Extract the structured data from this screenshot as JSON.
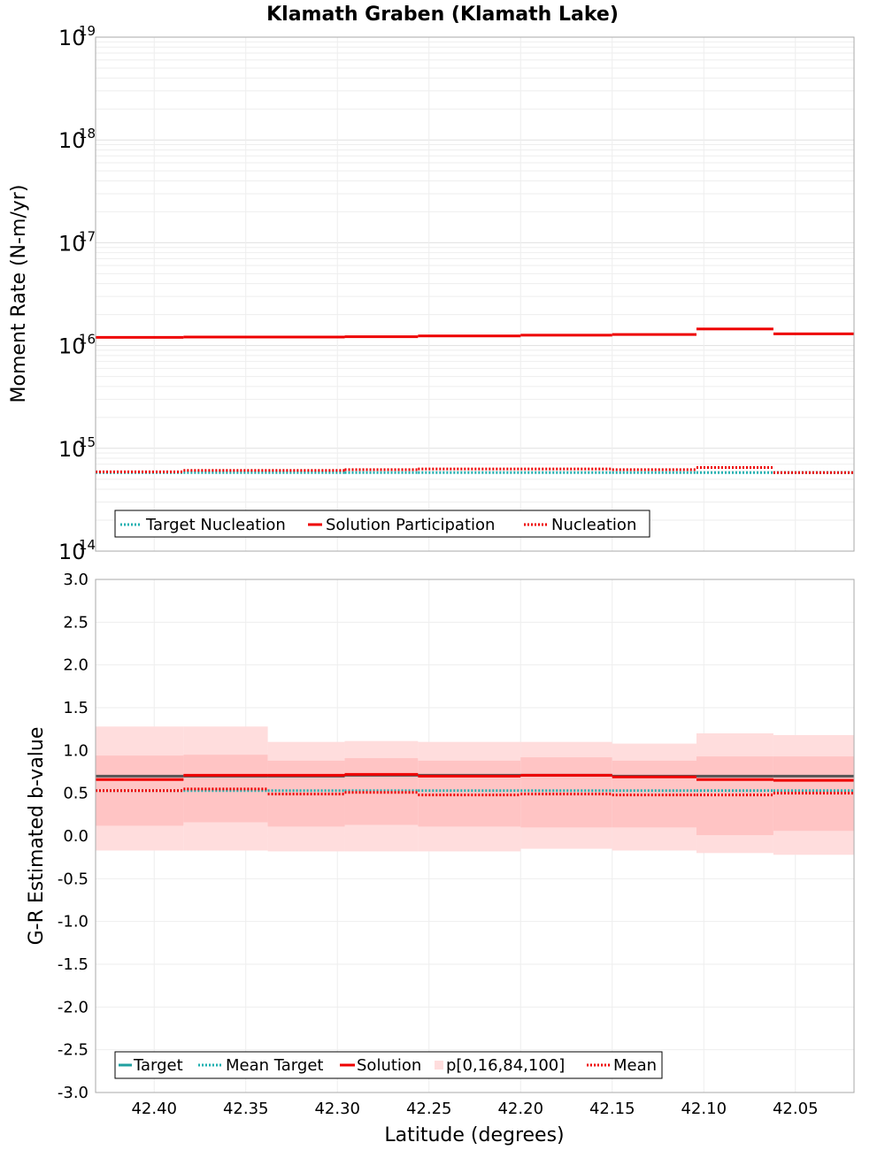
{
  "chart_data": [
    {
      "type": "line",
      "title": "Klamath Graben (Klamath Lake)",
      "ylabel": "Moment Rate (N-m/yr)",
      "yscale": "log",
      "ylim": [
        100000000000000.0,
        1e+19
      ],
      "xlim": [
        42.432,
        42.018
      ],
      "y_tick_base": "10",
      "y_tick_exponents": [
        "14",
        "15",
        "16",
        "17",
        "18",
        "19"
      ],
      "bin_edges": [
        42.432,
        42.384,
        42.296,
        42.256,
        42.2,
        42.15,
        42.104,
        42.062,
        42.018
      ],
      "series": [
        {
          "name": "Target Nucleation",
          "color": "#20b0b0",
          "style": "dotted",
          "values": [
            580000000000000.0,
            580000000000000.0,
            580000000000000.0,
            580000000000000.0,
            580000000000000.0,
            580000000000000.0,
            580000000000000.0,
            580000000000000.0
          ]
        },
        {
          "name": "Solution Participation",
          "color": "#ee0000",
          "style": "solid",
          "values": [
            1.2e+16,
            1.21e+16,
            1.22e+16,
            1.24e+16,
            1.26e+16,
            1.28e+16,
            1.45e+16,
            1.3e+16
          ]
        },
        {
          "name": "Nucleation",
          "color": "#ee0000",
          "style": "dotted",
          "values": [
            590000000000000.0,
            610000000000000.0,
            620000000000000.0,
            630000000000000.0,
            630000000000000.0,
            620000000000000.0,
            650000000000000.0,
            580000000000000.0
          ]
        }
      ],
      "legend": [
        "Target Nucleation",
        "Solution Participation",
        "Nucleation"
      ],
      "legend_position": "bottom-left"
    },
    {
      "type": "line",
      "ylabel": "G-R Estimated b-value",
      "xlabel": "Latitude (degrees)",
      "ylim": [
        -3.0,
        3.0
      ],
      "xlim": [
        42.432,
        42.018
      ],
      "y_ticks": [
        "-3.0",
        "-2.5",
        "-2.0",
        "-1.5",
        "-1.0",
        "-0.5",
        "0.0",
        "0.5",
        "1.0",
        "1.5",
        "2.0",
        "2.5",
        "3.0"
      ],
      "x_ticks": [
        "42.40",
        "42.35",
        "42.30",
        "42.25",
        "42.20",
        "42.15",
        "42.10",
        "42.05"
      ],
      "bin_edges": [
        42.432,
        42.384,
        42.338,
        42.296,
        42.256,
        42.2,
        42.15,
        42.104,
        42.062,
        42.018
      ],
      "target": [
        0.7,
        0.7,
        0.7,
        0.71,
        0.71,
        0.71,
        0.7,
        0.7,
        0.7
      ],
      "mean_target": [
        0.53,
        0.53,
        0.53,
        0.53,
        0.53,
        0.53,
        0.53,
        0.53,
        0.53
      ],
      "solution": [
        0.66,
        0.71,
        0.71,
        0.72,
        0.7,
        0.71,
        0.69,
        0.66,
        0.65
      ],
      "mean": [
        0.53,
        0.55,
        0.49,
        0.51,
        0.48,
        0.49,
        0.48,
        0.48,
        0.5
      ],
      "p0": [
        -0.17,
        -0.17,
        -0.18,
        -0.18,
        -0.18,
        -0.15,
        -0.17,
        -0.2,
        -0.22
      ],
      "p16": [
        0.12,
        0.16,
        0.11,
        0.13,
        0.11,
        0.1,
        0.1,
        0.01,
        0.06
      ],
      "p84": [
        0.94,
        0.95,
        0.88,
        0.91,
        0.88,
        0.92,
        0.88,
        0.93,
        0.93
      ],
      "p100": [
        1.28,
        1.28,
        1.1,
        1.11,
        1.1,
        1.1,
        1.08,
        1.2,
        1.18
      ],
      "colors": {
        "target": "#20a0a0",
        "target_line": "#555555",
        "mean_target": "#20b0b0",
        "solution": "#ee0000",
        "mean": "#ee0000",
        "band_outer": "#ffdddd",
        "band_inner": "#ffc4c4"
      },
      "legend": [
        "Target",
        "Mean Target",
        "Solution",
        "p[0,16,84,100]",
        "Mean"
      ],
      "legend_position": "bottom-left"
    }
  ]
}
